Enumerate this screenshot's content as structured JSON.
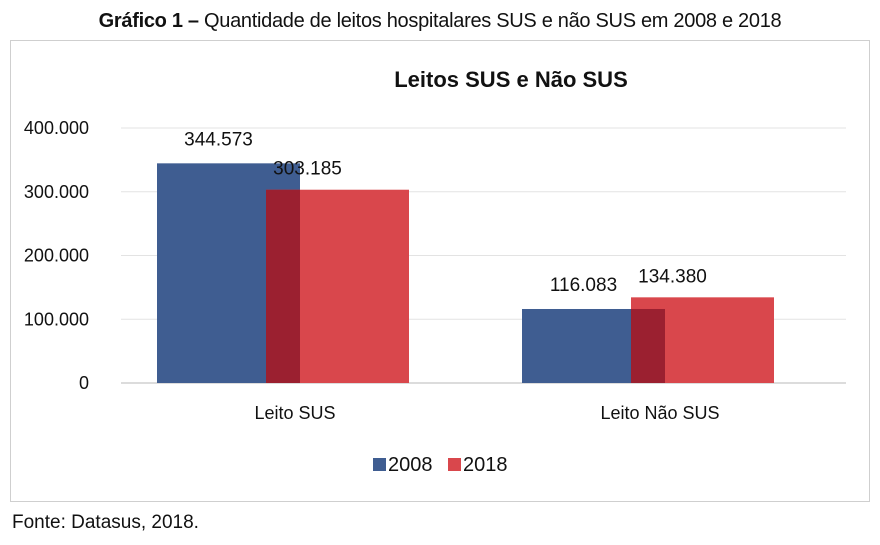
{
  "figure": {
    "caption_lead": "Gráfico 1 –",
    "caption_text": "Quantidade de leitos hospitalares SUS e não SUS em 2008 e 2018",
    "source": "Fonte: Datasus, 2018."
  },
  "chart_data": {
    "type": "bar",
    "title": "Leitos SUS e Não SUS",
    "categories": [
      "Leito SUS",
      "Leito Não SUS"
    ],
    "series": [
      {
        "name": "2008",
        "values": [
          344573,
          116083
        ],
        "labels": [
          "344.573",
          "116.083"
        ],
        "color": "#3f5d91"
      },
      {
        "name": "2018",
        "values": [
          303185,
          134380
        ],
        "labels": [
          "303.185",
          "134.380"
        ],
        "color": "#d9474c"
      }
    ],
    "overlap_color": "#9b2030",
    "ylim": [
      0,
      400000
    ],
    "yticks": [
      0,
      100000,
      200000,
      300000,
      400000
    ],
    "ytick_labels": [
      "0",
      "100.000",
      "200.000",
      "300.000",
      "400.000"
    ],
    "grid": true,
    "legend": "bottom",
    "xlabel": "",
    "ylabel": ""
  }
}
